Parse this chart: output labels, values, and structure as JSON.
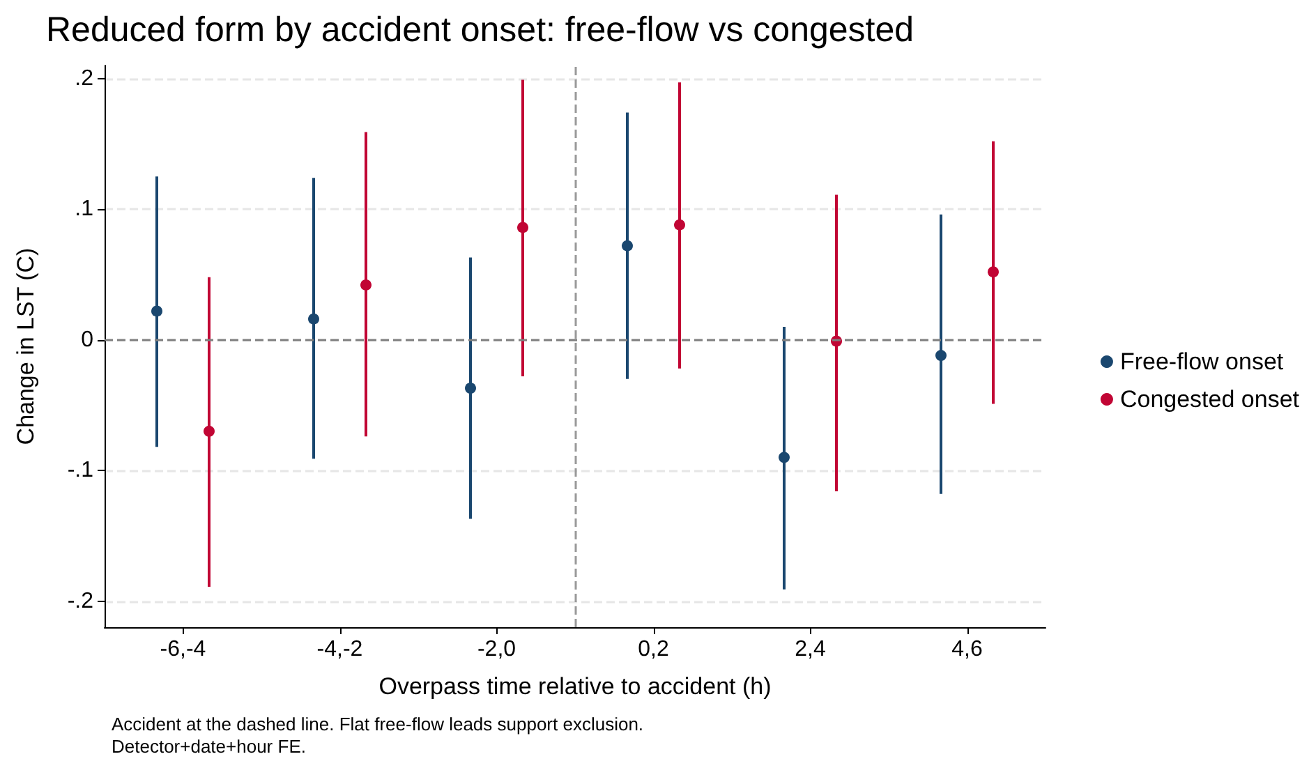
{
  "chart_data": {
    "type": "scatter",
    "title": "Reduced form by accident onset: free-flow vs congested",
    "xlabel": "Overpass time relative to accident (h)",
    "ylabel": "Change in LST (C)",
    "annotations": [
      "Accident at the dashed line. Flat free-flow leads support exclusion.",
      "Detector+date+hour FE."
    ],
    "categories": [
      "-6,-4",
      "-4,-2",
      "-2,0",
      "0,2",
      "2,4",
      "4,6"
    ],
    "ylim": [
      -0.22,
      0.21
    ],
    "yticks": [
      {
        "value": -0.2,
        "label": "-.2"
      },
      {
        "value": -0.1,
        "label": "-.1"
      },
      0,
      {
        "value": 0.1,
        "label": ".1"
      },
      {
        "value": 0.2,
        "label": ".2"
      }
    ],
    "grid": "y",
    "legend": "right",
    "marker": "circle",
    "ref_lines": [
      {
        "axis": "x",
        "value": "0,2",
        "color": "#999999",
        "line_style": "dashed"
      },
      {
        "axis": "y",
        "value": 0,
        "color": "#808080",
        "line_style": "dashed"
      }
    ],
    "series": [
      {
        "name": "Free-flow onset",
        "color": "#1a476f",
        "values": [
          0.022,
          0.016,
          -0.037,
          0.072,
          -0.09,
          -0.012
        ],
        "errors": [
          [
            -0.082,
            0.125
          ],
          [
            -0.091,
            0.124
          ],
          [
            -0.137,
            0.063
          ],
          [
            -0.03,
            0.174
          ],
          [
            -0.191,
            0.01
          ],
          [
            -0.118,
            0.096
          ]
        ]
      },
      {
        "name": "Congested onset",
        "color": "#c10534",
        "values": [
          -0.07,
          0.042,
          0.086,
          0.088,
          -0.001,
          0.052
        ],
        "errors": [
          [
            -0.189,
            0.048
          ],
          [
            -0.074,
            0.159
          ],
          [
            -0.028,
            0.199
          ],
          [
            -0.022,
            0.197
          ],
          [
            -0.116,
            0.111
          ],
          [
            -0.049,
            0.152
          ]
        ]
      }
    ]
  }
}
